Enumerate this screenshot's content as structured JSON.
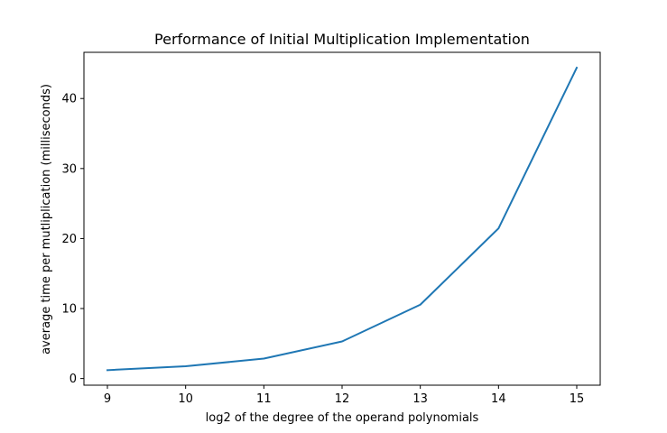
{
  "chart_data": {
    "type": "line",
    "title": "Performance of Initial Multiplication Implementation",
    "xlabel": "log2 of the degree of the operand polynomials",
    "ylabel": "average time per mutliplication (milliseconds)",
    "x": [
      9,
      10,
      11,
      12,
      13,
      14,
      15
    ],
    "series": [
      {
        "values": [
          1.2,
          1.75,
          2.85,
          5.3,
          10.55,
          21.45,
          44.4
        ],
        "color": "#1f77b4"
      }
    ],
    "xlim": [
      8.7,
      15.3
    ],
    "ylim": [
      -0.95,
      46.6
    ],
    "xticks": [
      "9",
      "10",
      "11",
      "12",
      "13",
      "14",
      "15"
    ],
    "yticks": [
      "0",
      "10",
      "20",
      "30",
      "40"
    ],
    "grid": false,
    "legend": "none"
  }
}
